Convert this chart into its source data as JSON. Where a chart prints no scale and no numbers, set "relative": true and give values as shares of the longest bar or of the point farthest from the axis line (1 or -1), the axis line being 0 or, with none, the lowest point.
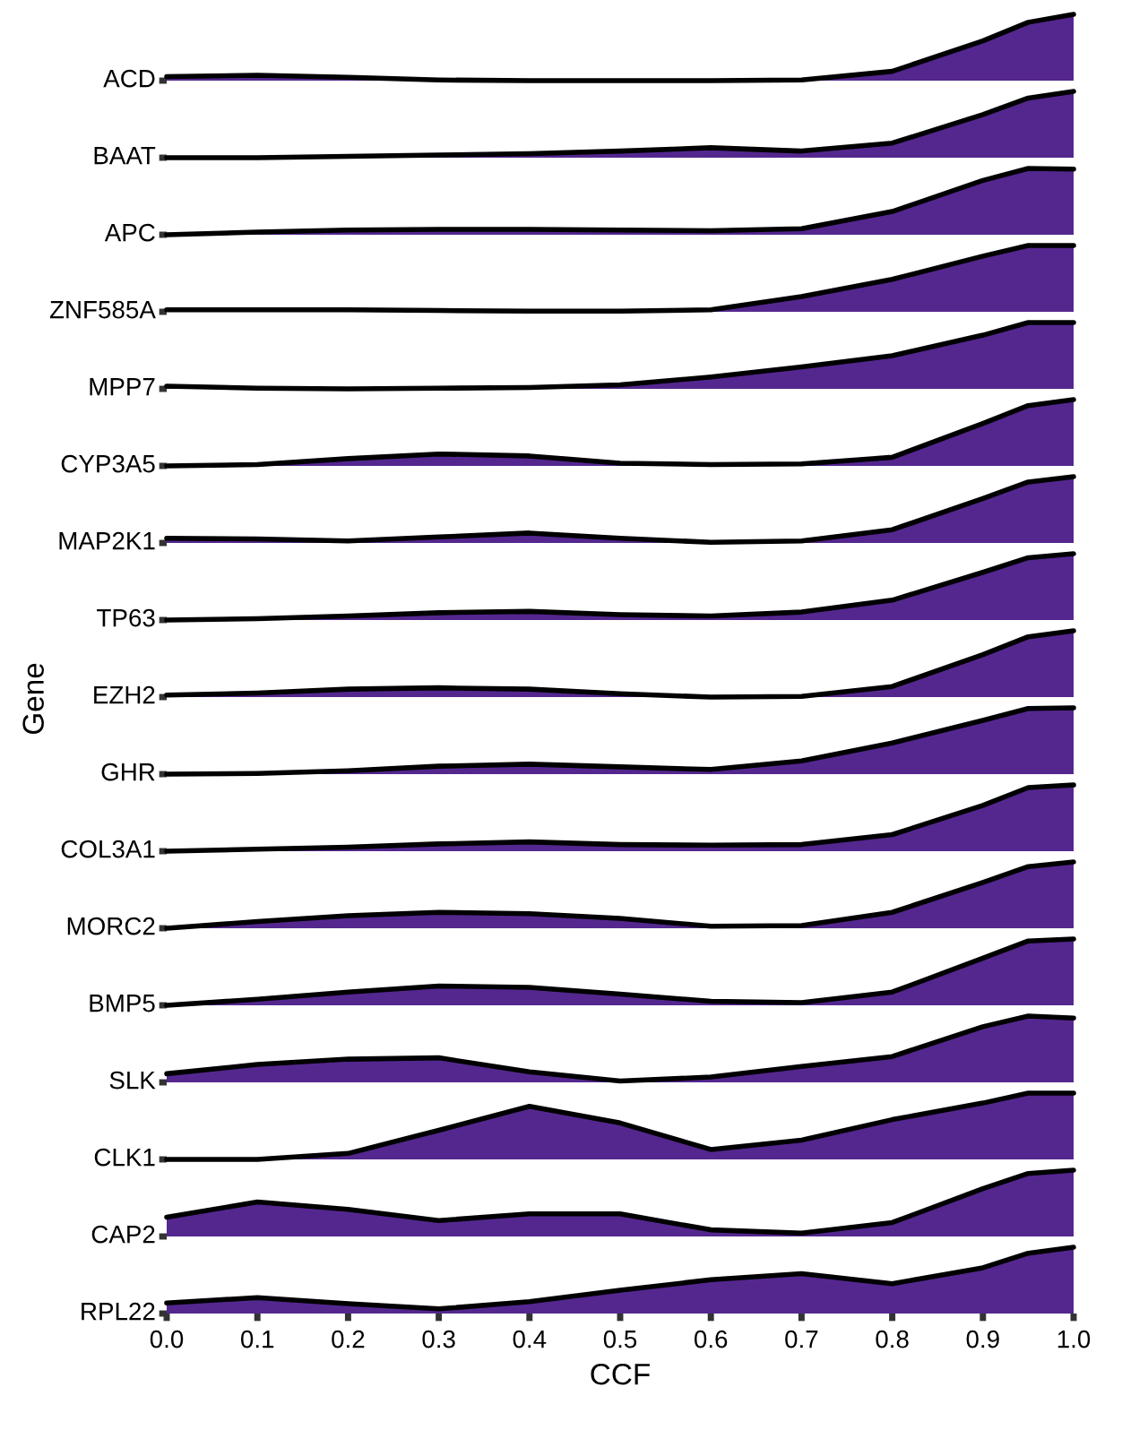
{
  "chart_data": [
    {
      "type": "area",
      "relative": true,
      "title": "ACD",
      "tick_labels": false,
      "x": [
        0,
        0.1,
        0.2,
        0.3,
        0.4,
        0.5,
        0.6,
        0.7,
        0.8,
        0.9,
        0.95,
        1.0
      ],
      "xlim": [
        0,
        1
      ],
      "series": [
        {
          "color": "#54278f",
          "values": [
            0.06,
            0.08,
            0.05,
            0.01,
            0,
            0,
            0,
            0.01,
            0.14,
            0.6,
            0.88,
            1.0
          ]
        }
      ]
    },
    {
      "type": "area",
      "relative": true,
      "title": "BAAT",
      "tick_labels": false,
      "x": [
        0,
        0.1,
        0.2,
        0.3,
        0.4,
        0.5,
        0.6,
        0.7,
        0.8,
        0.9,
        0.95,
        1.0
      ],
      "xlim": [
        0,
        1
      ],
      "series": [
        {
          "color": "#54278f",
          "values": [
            0,
            0,
            0.02,
            0.04,
            0.06,
            0.1,
            0.15,
            0.1,
            0.22,
            0.65,
            0.9,
            1.0
          ]
        }
      ]
    },
    {
      "type": "area",
      "relative": true,
      "title": "APC",
      "tick_labels": false,
      "x": [
        0,
        0.1,
        0.2,
        0.3,
        0.4,
        0.5,
        0.6,
        0.7,
        0.8,
        0.9,
        0.95,
        1.0
      ],
      "xlim": [
        0,
        1
      ],
      "series": [
        {
          "color": "#54278f",
          "values": [
            0,
            0.04,
            0.07,
            0.08,
            0.08,
            0.07,
            0.06,
            0.09,
            0.35,
            0.82,
            1,
            0.99
          ]
        }
      ]
    },
    {
      "type": "area",
      "relative": true,
      "title": "ZNF585A",
      "tick_labels": false,
      "x": [
        0,
        0.1,
        0.2,
        0.3,
        0.4,
        0.5,
        0.6,
        0.7,
        0.8,
        0.9,
        0.95,
        1.0
      ],
      "xlim": [
        0,
        1
      ],
      "series": [
        {
          "color": "#54278f",
          "values": [
            0.03,
            0.03,
            0.03,
            0.02,
            0.01,
            0.01,
            0.03,
            0.23,
            0.49,
            0.84,
            1,
            1
          ]
        }
      ]
    },
    {
      "type": "area",
      "relative": true,
      "title": "MPP7",
      "tick_labels": false,
      "x": [
        0,
        0.1,
        0.2,
        0.3,
        0.4,
        0.5,
        0.6,
        0.7,
        0.8,
        0.9,
        0.95,
        1.0
      ],
      "xlim": [
        0,
        1
      ],
      "series": [
        {
          "color": "#54278f",
          "values": [
            0.04,
            0.01,
            0,
            0.01,
            0.02,
            0.06,
            0.18,
            0.33,
            0.5,
            0.81,
            1,
            1
          ]
        }
      ]
    },
    {
      "type": "area",
      "relative": true,
      "title": "CYP3A5",
      "tick_labels": false,
      "x": [
        0,
        0.1,
        0.2,
        0.3,
        0.4,
        0.5,
        0.6,
        0.7,
        0.8,
        0.9,
        0.95,
        1.0
      ],
      "xlim": [
        0,
        1
      ],
      "series": [
        {
          "color": "#54278f",
          "values": [
            0,
            0.02,
            0.11,
            0.18,
            0.15,
            0.04,
            0.02,
            0.03,
            0.13,
            0.64,
            0.91,
            1
          ]
        }
      ]
    },
    {
      "type": "area",
      "relative": true,
      "title": "MAP2K1",
      "tick_labels": false,
      "x": [
        0,
        0.1,
        0.2,
        0.3,
        0.4,
        0.5,
        0.6,
        0.7,
        0.8,
        0.9,
        0.95,
        1.0
      ],
      "xlim": [
        0,
        1
      ],
      "series": [
        {
          "color": "#54278f",
          "values": [
            0.07,
            0.06,
            0.03,
            0.09,
            0.15,
            0.07,
            0.01,
            0.03,
            0.2,
            0.67,
            0.92,
            1
          ]
        }
      ]
    },
    {
      "type": "area",
      "relative": true,
      "title": "TP63",
      "tick_labels": false,
      "x": [
        0,
        0.1,
        0.2,
        0.3,
        0.4,
        0.5,
        0.6,
        0.7,
        0.8,
        0.9,
        0.95,
        1.0
      ],
      "xlim": [
        0,
        1
      ],
      "series": [
        {
          "color": "#54278f",
          "values": [
            0,
            0.02,
            0.06,
            0.11,
            0.13,
            0.08,
            0.06,
            0.12,
            0.3,
            0.72,
            0.94,
            1
          ]
        }
      ]
    },
    {
      "type": "area",
      "relative": true,
      "title": "EZH2",
      "ylabel": "Gene",
      "tick_labels": false,
      "x": [
        0,
        0.1,
        0.2,
        0.3,
        0.4,
        0.5,
        0.6,
        0.7,
        0.8,
        0.9,
        0.95,
        1.0
      ],
      "xlim": [
        0,
        1
      ],
      "series": [
        {
          "color": "#54278f",
          "values": [
            0.03,
            0.06,
            0.12,
            0.14,
            0.12,
            0.05,
            0,
            0.01,
            0.16,
            0.64,
            0.91,
            1
          ]
        }
      ]
    },
    {
      "type": "area",
      "relative": true,
      "title": "GHR",
      "tick_labels": false,
      "x": [
        0,
        0.1,
        0.2,
        0.3,
        0.4,
        0.5,
        0.6,
        0.7,
        0.8,
        0.9,
        0.95,
        1.0
      ],
      "xlim": [
        0,
        1
      ],
      "series": [
        {
          "color": "#54278f",
          "values": [
            0,
            0.01,
            0.05,
            0.12,
            0.15,
            0.11,
            0.07,
            0.2,
            0.47,
            0.81,
            0.99,
            1
          ]
        }
      ]
    },
    {
      "type": "area",
      "relative": true,
      "title": "COL3A1",
      "tick_labels": false,
      "x": [
        0,
        0.1,
        0.2,
        0.3,
        0.4,
        0.5,
        0.6,
        0.7,
        0.8,
        0.9,
        0.95,
        1.0
      ],
      "xlim": [
        0,
        1
      ],
      "series": [
        {
          "color": "#54278f",
          "values": [
            0,
            0.03,
            0.06,
            0.11,
            0.14,
            0.1,
            0.09,
            0.1,
            0.25,
            0.69,
            0.96,
            1
          ]
        }
      ]
    },
    {
      "type": "area",
      "relative": true,
      "title": "MORC2",
      "tick_labels": false,
      "x": [
        0,
        0.1,
        0.2,
        0.3,
        0.4,
        0.5,
        0.6,
        0.7,
        0.8,
        0.9,
        0.95,
        1.0
      ],
      "xlim": [
        0,
        1
      ],
      "series": [
        {
          "color": "#54278f",
          "values": [
            0,
            0.1,
            0.19,
            0.24,
            0.22,
            0.15,
            0.03,
            0.04,
            0.24,
            0.69,
            0.93,
            1
          ]
        }
      ]
    },
    {
      "type": "area",
      "relative": true,
      "title": "BMP5",
      "tick_labels": false,
      "x": [
        0,
        0.1,
        0.2,
        0.3,
        0.4,
        0.5,
        0.6,
        0.7,
        0.8,
        0.9,
        0.95,
        1.0
      ],
      "xlim": [
        0,
        1
      ],
      "series": [
        {
          "color": "#54278f",
          "values": [
            0,
            0.09,
            0.2,
            0.29,
            0.27,
            0.17,
            0.06,
            0.04,
            0.2,
            0.71,
            0.97,
            1
          ]
        }
      ]
    },
    {
      "type": "area",
      "relative": true,
      "title": "SLK",
      "tick_labels": false,
      "x": [
        0,
        0.1,
        0.2,
        0.3,
        0.4,
        0.5,
        0.6,
        0.7,
        0.8,
        0.9,
        0.95,
        1.0
      ],
      "xlim": [
        0,
        1
      ],
      "series": [
        {
          "color": "#54278f",
          "values": [
            0.13,
            0.27,
            0.35,
            0.37,
            0.16,
            0.02,
            0.08,
            0.24,
            0.39,
            0.84,
            1,
            0.97
          ]
        }
      ]
    },
    {
      "type": "area",
      "relative": true,
      "title": "CLK1",
      "tick_labels": false,
      "x": [
        0,
        0.1,
        0.2,
        0.3,
        0.4,
        0.5,
        0.6,
        0.7,
        0.8,
        0.9,
        0.95,
        1.0
      ],
      "xlim": [
        0,
        1
      ],
      "series": [
        {
          "color": "#54278f",
          "values": [
            0,
            0,
            0.09,
            0.44,
            0.8,
            0.55,
            0.15,
            0.29,
            0.6,
            0.85,
            1,
            1
          ]
        }
      ]
    },
    {
      "type": "area",
      "relative": true,
      "title": "CAP2",
      "tick_labels": false,
      "x": [
        0,
        0.1,
        0.2,
        0.3,
        0.4,
        0.5,
        0.6,
        0.7,
        0.8,
        0.9,
        0.95,
        1.0
      ],
      "xlim": [
        0,
        1
      ],
      "series": [
        {
          "color": "#54278f",
          "values": [
            0.29,
            0.52,
            0.41,
            0.24,
            0.34,
            0.34,
            0.1,
            0.05,
            0.21,
            0.72,
            0.95,
            1
          ]
        }
      ]
    },
    {
      "type": "area",
      "relative": true,
      "title": "RPL22",
      "xlabel": "CCF",
      "tick_labels": "x",
      "x": [
        0,
        0.1,
        0.2,
        0.3,
        0.4,
        0.5,
        0.6,
        0.7,
        0.8,
        0.9,
        0.95,
        1.0
      ],
      "xlim": [
        0,
        1
      ],
      "xticks": [
        {
          "value": 0,
          "label": "0.0"
        },
        0.1,
        0.2,
        0.3,
        0.4,
        0.5,
        0.6,
        0.7,
        0.8,
        0.9,
        {
          "value": 1,
          "label": "1.0"
        }
      ],
      "series": [
        {
          "color": "#54278f",
          "values": [
            0.16,
            0.24,
            0.15,
            0.07,
            0.18,
            0.35,
            0.51,
            0.6,
            0.45,
            0.69,
            0.91,
            1
          ]
        }
      ]
    }
  ]
}
